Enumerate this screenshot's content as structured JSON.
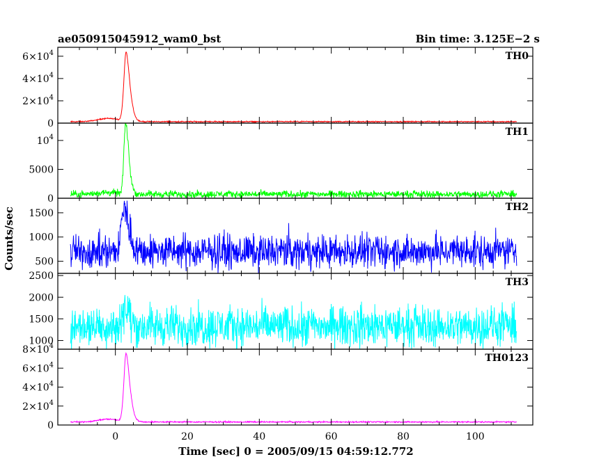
{
  "chart_data": {
    "type": "line",
    "title_left": "ae050915045912_wam0_bst",
    "title_right": "Bin time: 3.125E−2 s",
    "xlabel": "Time [sec] 0 = 2005/09/15 04:59:12.772",
    "ylabel": "Counts/sec",
    "xlim": [
      -16,
      116
    ],
    "x_ticks": [
      0,
      20,
      40,
      60,
      80,
      100
    ],
    "x_tick_labels": [
      "0",
      "20",
      "40",
      "60",
      "80",
      "100"
    ],
    "panels": [
      {
        "name": "TH0",
        "color": "#ff0000",
        "ylim": [
          0,
          68000
        ],
        "y_ticks": [
          0,
          20000,
          40000,
          60000
        ],
        "y_tick_labels": [
          {
            "base": "0",
            "sup": ""
          },
          {
            "base": "2×10",
            "sup": "4"
          },
          {
            "base": "4×10",
            "sup": "4"
          },
          {
            "base": "6×10",
            "sup": "4"
          }
        ],
        "baseline": 1300,
        "noise": 250,
        "pre_bump": 3000,
        "peak": 62000,
        "peak_time": 3.0,
        "peak_width": 1.1
      },
      {
        "name": "TH1",
        "color": "#00ff00",
        "ylim": [
          0,
          13000
        ],
        "y_ticks": [
          0,
          5000,
          10000
        ],
        "y_tick_labels": [
          {
            "base": "0",
            "sup": ""
          },
          {
            "base": "5000",
            "sup": ""
          },
          {
            "base": "10",
            "sup": "4"
          }
        ],
        "baseline": 700,
        "noise": 300,
        "pre_bump": 300,
        "peak": 12500,
        "peak_time": 2.9,
        "peak_width": 0.9
      },
      {
        "name": "TH2",
        "color": "#0000ff",
        "ylim": [
          250,
          1800
        ],
        "y_ticks": [
          500,
          1000,
          1500
        ],
        "y_tick_labels": [
          {
            "base": "500",
            "sup": ""
          },
          {
            "base": "1000",
            "sup": ""
          },
          {
            "base": "1500",
            "sup": ""
          }
        ],
        "baseline": 700,
        "noise": 170,
        "pre_bump": 0,
        "peak": 900,
        "peak_time": 2.5,
        "peak_width": 1.4
      },
      {
        "name": "TH3",
        "color": "#00ffff",
        "ylim": [
          800,
          2550
        ],
        "y_ticks": [
          1000,
          1500,
          2000,
          2500
        ],
        "y_tick_labels": [
          {
            "base": "1000",
            "sup": ""
          },
          {
            "base": "1500",
            "sup": ""
          },
          {
            "base": "2000",
            "sup": ""
          },
          {
            "base": "2500",
            "sup": ""
          }
        ],
        "baseline": 1330,
        "noise": 230,
        "pre_bump": 0,
        "peak": 500,
        "peak_time": 2.5,
        "peak_width": 1.2
      },
      {
        "name": "TH0123",
        "color": "#ff00ff",
        "ylim": [
          0,
          80000
        ],
        "y_ticks": [
          0,
          20000,
          40000,
          60000,
          80000
        ],
        "y_tick_labels": [
          {
            "base": "0",
            "sup": ""
          },
          {
            "base": "2×10",
            "sup": "4"
          },
          {
            "base": "4×10",
            "sup": "4"
          },
          {
            "base": "6×10",
            "sup": "4"
          },
          {
            "base": "8×10",
            "sup": "4"
          }
        ],
        "baseline": 3200,
        "noise": 350,
        "pre_bump": 3000,
        "peak": 72000,
        "peak_time": 3.0,
        "peak_width": 1.1
      }
    ]
  }
}
